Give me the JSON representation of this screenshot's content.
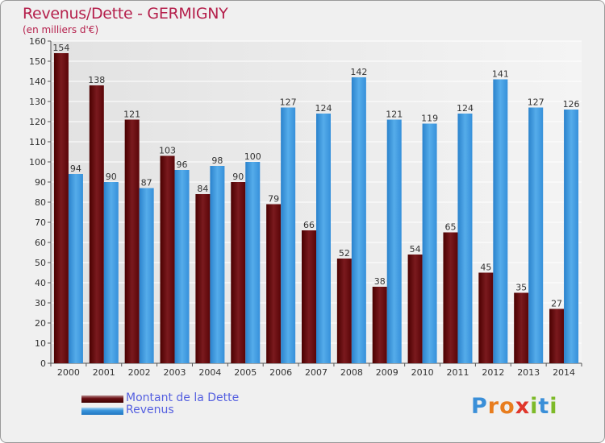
{
  "header": {
    "title": "Revenus/Dette - GERMIGNY",
    "subtitle": "(en milliers d'€)"
  },
  "legend": {
    "items": [
      {
        "label": "Montant de la Dette",
        "color": "#6b0f14"
      },
      {
        "label": "Revenus",
        "color": "#3a95dc"
      }
    ]
  },
  "logo": {
    "text": "Proxiti",
    "letters": [
      "P",
      "r",
      "o",
      "x",
      "i",
      "t",
      "i"
    ],
    "colors": [
      "#3a8fd8",
      "#e87d1e",
      "#e87d1e",
      "#e0362b",
      "#7dba28",
      "#3a8fd8",
      "#7dba28"
    ]
  },
  "chart_data": {
    "type": "bar",
    "categories": [
      "2000",
      "2001",
      "2002",
      "2003",
      "2004",
      "2005",
      "2006",
      "2007",
      "2008",
      "2009",
      "2010",
      "2011",
      "2012",
      "2013",
      "2014"
    ],
    "series": [
      {
        "name": "Montant de la Dette",
        "color": "#6b0f14",
        "values": [
          154,
          138,
          121,
          103,
          84,
          90,
          79,
          66,
          52,
          38,
          54,
          65,
          45,
          35,
          27
        ]
      },
      {
        "name": "Revenus",
        "color": "#3a95dc",
        "values": [
          94,
          90,
          87,
          96,
          98,
          100,
          127,
          124,
          142,
          121,
          119,
          124,
          141,
          127,
          126
        ]
      }
    ],
    "ylim": [
      0,
      160
    ],
    "yticks": [
      0,
      10,
      20,
      30,
      40,
      50,
      60,
      70,
      80,
      90,
      100,
      110,
      120,
      130,
      140,
      150,
      160
    ],
    "grid": true,
    "title": "Revenus/Dette - GERMIGNY",
    "ylabel": "(en milliers d'€)",
    "xlabel": ""
  }
}
